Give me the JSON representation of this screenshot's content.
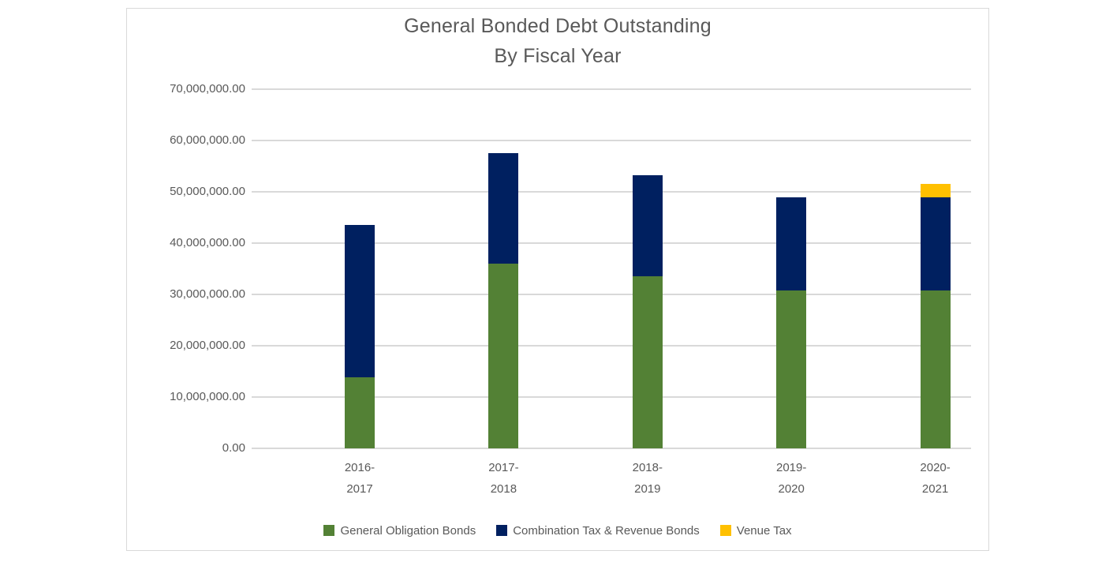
{
  "title": {
    "line1": "General Bonded Debt Outstanding",
    "line2": "By Fiscal Year"
  },
  "colors": {
    "green": "#538135",
    "navy": "#002060",
    "yellow": "#FFC000",
    "grid": "#d9d9d9",
    "text": "#595959",
    "frame_border": "#d9d9d9",
    "background": "#ffffff"
  },
  "chart_data": {
    "type": "bar",
    "stacked": true,
    "title": "General Bonded Debt Outstanding",
    "subtitle": "By Fiscal Year",
    "categories": [
      "2016-2017",
      "2017-2018",
      "2018-2019",
      "2019-2020",
      "2020-2021"
    ],
    "series": [
      {
        "name": "General Obligation Bonds",
        "color": "#538135",
        "values": [
          13900000,
          36000000,
          33600000,
          30700000,
          30800000
        ]
      },
      {
        "name": "Combination Tax & Revenue Bonds",
        "color": "#002060",
        "values": [
          29600000,
          21500000,
          19600000,
          18300000,
          18100000
        ]
      },
      {
        "name": "Venue Tax",
        "color": "#FFC000",
        "values": [
          0,
          0,
          0,
          0,
          2600000
        ]
      }
    ],
    "totals": [
      43500000,
      57500000,
      53200000,
      49000000,
      51500000
    ],
    "ylim": [
      0,
      70000000
    ],
    "ytick_interval": 10000000,
    "ytick_labels": [
      "0.00",
      "10,000,000.00",
      "20,000,000.00",
      "30,000,000.00",
      "40,000,000.00",
      "50,000,000.00",
      "60,000,000.00",
      "70,000,000.00"
    ],
    "xlabel": "",
    "ylabel": "",
    "grid": true,
    "legend_position": "bottom"
  }
}
